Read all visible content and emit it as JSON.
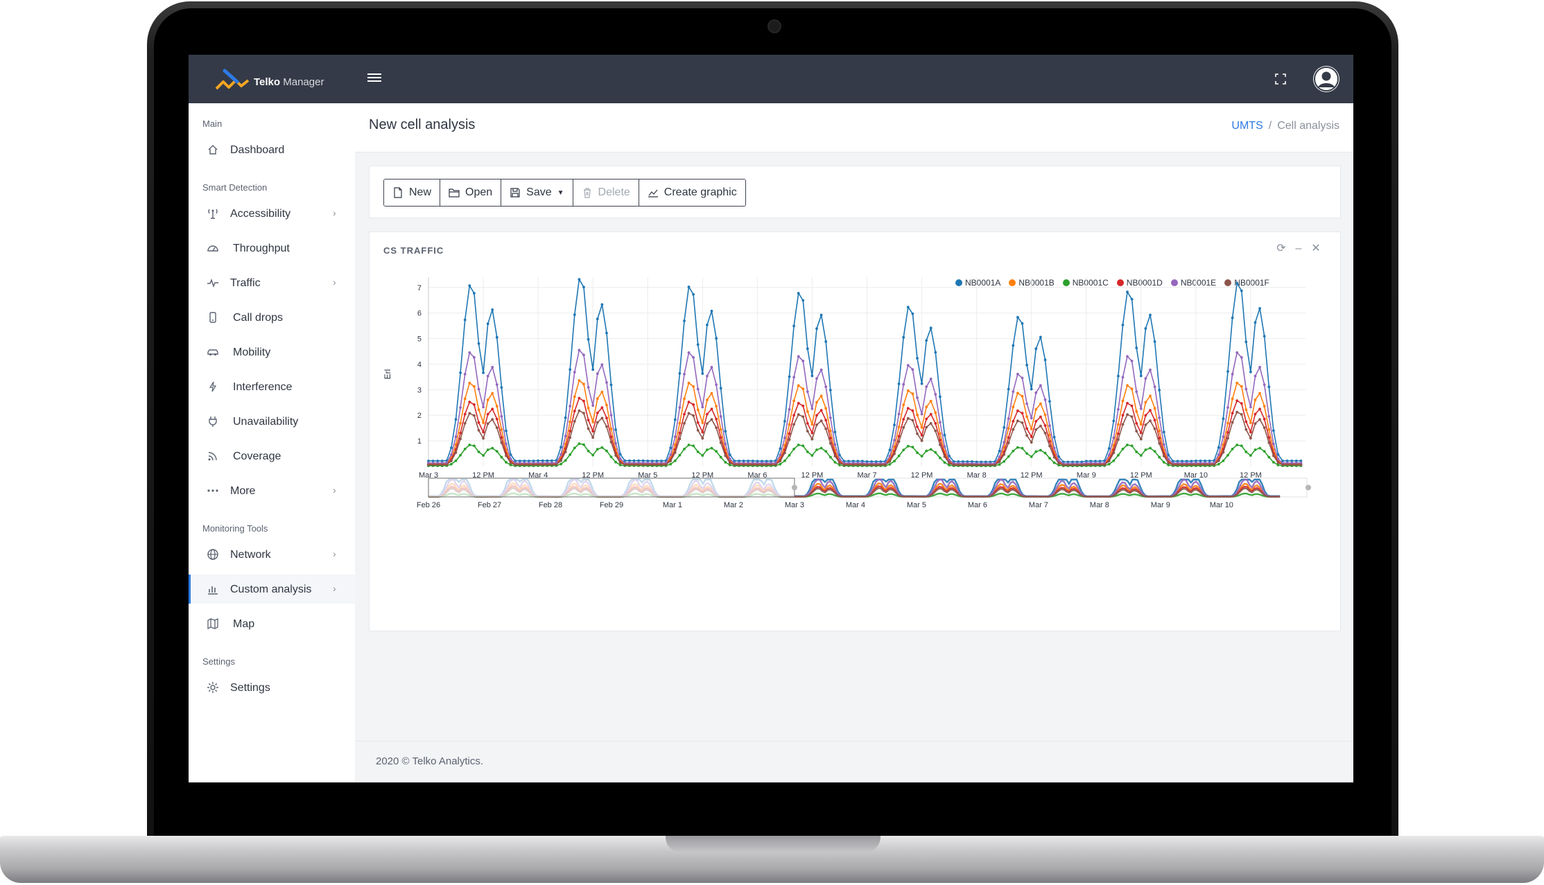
{
  "app": {
    "brand_name": "Telko",
    "brand_name_light": " Manager"
  },
  "page": {
    "title": "New cell analysis"
  },
  "breadcrumb": {
    "items": [
      "UMTS",
      "Cell analysis"
    ]
  },
  "sidebar": {
    "sections": [
      {
        "title": "Main",
        "items": [
          {
            "label": "Dashboard",
            "icon": "home-icon",
            "has_children": false
          }
        ]
      },
      {
        "title": "Smart Detection",
        "items": [
          {
            "label": "Accessibility",
            "icon": "antenna-icon",
            "has_children": true
          },
          {
            "label": "Throughput",
            "icon": "gauge-icon",
            "has_children": false
          },
          {
            "label": "Traffic",
            "icon": "pulse-icon",
            "has_children": true
          },
          {
            "label": "Call drops",
            "icon": "phone-icon",
            "has_children": false
          },
          {
            "label": "Mobility",
            "icon": "car-icon",
            "has_children": false
          },
          {
            "label": "Interference",
            "icon": "bolt-icon",
            "has_children": false
          },
          {
            "label": "Unavailability",
            "icon": "plug-icon",
            "has_children": false
          },
          {
            "label": "Coverage",
            "icon": "rss-icon",
            "has_children": false
          },
          {
            "label": "More",
            "icon": "dots-icon",
            "has_children": true
          }
        ]
      },
      {
        "title": "Monitoring Tools",
        "items": [
          {
            "label": "Network",
            "icon": "globe-icon",
            "has_children": true
          },
          {
            "label": "Custom analysis",
            "icon": "bar-chart-icon",
            "has_children": true,
            "active": true
          },
          {
            "label": "Map",
            "icon": "map-icon",
            "has_children": false
          }
        ]
      },
      {
        "title": "Settings",
        "items": [
          {
            "label": "Settings",
            "icon": "gear-icon",
            "has_children": false
          }
        ]
      }
    ]
  },
  "toolbar": {
    "new_label": "New",
    "open_label": "Open",
    "save_label": "Save",
    "delete_label": "Delete",
    "create_graphic_label": "Create graphic"
  },
  "card": {
    "title": "CS TRAFFIC"
  },
  "footer": {
    "text": "2020 © Telko Analytics."
  },
  "colors": {
    "accent": "#2d7be5",
    "topbar": "#343a47"
  },
  "chart_data": {
    "type": "line",
    "ylabel": "Erl",
    "ylim": [
      0,
      7.4
    ],
    "y_ticks": [
      1,
      2,
      3,
      4,
      5,
      6,
      7
    ],
    "x_tick_labels": [
      "Mar 3",
      "12 PM",
      "Mar 4",
      "12 PM",
      "Mar 5",
      "12 PM",
      "Mar 6",
      "12 PM",
      "Mar 7",
      "12 PM",
      "Mar 8",
      "12 PM",
      "Mar 9",
      "12 PM",
      "Mar 10",
      "12 PM"
    ],
    "legend_position": "top-right",
    "grid": true,
    "series": [
      {
        "name": "NB0001A",
        "color": "#1f77b4",
        "daily_peaks": [
          7.15,
          7.4,
          7.1,
          6.85,
          6.3,
          5.9,
          6.9,
          7.25
        ],
        "daily_second_peaks": [
          6.0,
          6.2,
          5.95,
          5.8,
          5.3,
          4.95,
          5.8,
          6.05
        ]
      },
      {
        "name": "NB0001B",
        "color": "#ff7f0e",
        "daily_peaks": [
          3.3,
          3.4,
          3.3,
          3.2,
          3.0,
          2.9,
          3.2,
          3.3
        ],
        "daily_second_peaks": [
          2.8,
          2.85,
          2.8,
          2.7,
          2.5,
          2.4,
          2.7,
          2.8
        ]
      },
      {
        "name": "NB0001C",
        "color": "#2ca02c",
        "daily_peaks": [
          0.85,
          0.9,
          0.85,
          0.85,
          0.8,
          0.75,
          0.85,
          0.85
        ],
        "daily_second_peaks": [
          0.7,
          0.72,
          0.7,
          0.7,
          0.65,
          0.62,
          0.7,
          0.7
        ]
      },
      {
        "name": "NB0001D",
        "color": "#d62728",
        "daily_peaks": [
          2.55,
          2.7,
          2.55,
          2.5,
          2.3,
          2.2,
          2.5,
          2.6
        ],
        "daily_second_peaks": [
          2.2,
          2.25,
          2.2,
          2.15,
          2.0,
          1.9,
          2.15,
          2.2
        ]
      },
      {
        "name": "NB0001E",
        "color": "#9467bd",
        "daily_peaks": [
          4.5,
          4.6,
          4.5,
          4.35,
          4.0,
          3.65,
          4.35,
          4.5
        ],
        "daily_second_peaks": [
          3.8,
          3.9,
          3.8,
          3.7,
          3.35,
          3.1,
          3.7,
          3.8
        ]
      },
      {
        "name": "NB0001F",
        "color": "#8c564b",
        "daily_peaks": [
          2.1,
          2.2,
          2.1,
          2.05,
          1.9,
          1.8,
          2.05,
          2.15
        ],
        "daily_second_peaks": [
          1.8,
          1.85,
          1.8,
          1.75,
          1.65,
          1.55,
          1.75,
          1.8
        ]
      }
    ],
    "navigator": {
      "tick_labels": [
        "Feb 26",
        "Feb 27",
        "Feb 28",
        "Feb 29",
        "Mar 1",
        "Mar 2",
        "Mar 3",
        "Mar 4",
        "Mar 5",
        "Mar 6",
        "Mar 7",
        "Mar 8",
        "Mar 9",
        "Mar 10"
      ]
    }
  }
}
